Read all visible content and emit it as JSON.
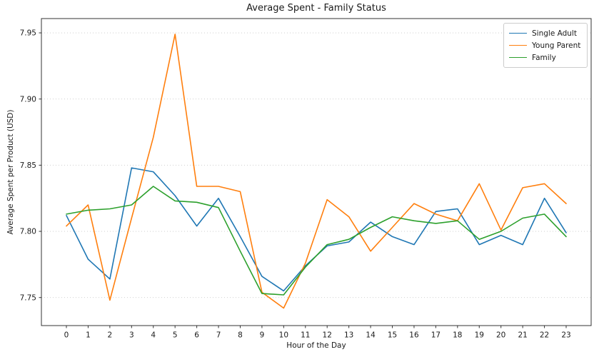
{
  "chart_data": {
    "type": "line",
    "title": "Average Spent - Family Status",
    "xlabel": "Hour of the Day",
    "ylabel": "Average Spent per Product (USD)",
    "x": [
      0,
      1,
      2,
      3,
      4,
      5,
      6,
      7,
      8,
      9,
      10,
      11,
      12,
      13,
      14,
      15,
      16,
      17,
      18,
      19,
      20,
      21,
      22,
      23
    ],
    "xtick_labels": [
      "0",
      "1",
      "2",
      "3",
      "4",
      "5",
      "6",
      "7",
      "8",
      "9",
      "10",
      "11",
      "12",
      "13",
      "14",
      "15",
      "16",
      "17",
      "18",
      "19",
      "20",
      "21",
      "22",
      "23"
    ],
    "yticks": [
      7.75,
      7.8,
      7.85,
      7.9,
      7.95
    ],
    "ytick_labels": [
      "7.75",
      "7.80",
      "7.85",
      "7.90",
      "7.95"
    ],
    "xlim": [
      -1.15,
      24.15
    ],
    "ylim": [
      7.7288,
      7.9608
    ],
    "grid": "horizontal-dotted",
    "legend_position": "upper right",
    "series": [
      {
        "name": "Single Adult",
        "color": "#1f77b4",
        "values": [
          7.812,
          7.779,
          7.764,
          7.848,
          7.845,
          7.827,
          7.804,
          7.825,
          7.796,
          7.766,
          7.755,
          7.774,
          7.789,
          7.792,
          7.807,
          7.796,
          7.79,
          7.815,
          7.817,
          7.79,
          7.797,
          7.79,
          7.825,
          7.799
        ]
      },
      {
        "name": "Young Parent",
        "color": "#ff7f0e",
        "values": [
          7.804,
          7.82,
          7.748,
          7.81,
          7.871,
          7.949,
          7.834,
          7.834,
          7.83,
          7.754,
          7.742,
          7.776,
          7.824,
          7.811,
          7.785,
          7.803,
          7.821,
          7.813,
          7.808,
          7.836,
          7.801,
          7.833,
          7.836,
          7.821
        ]
      },
      {
        "name": "Family",
        "color": "#2ca02c",
        "values": [
          7.813,
          7.816,
          7.817,
          7.82,
          7.834,
          7.823,
          7.822,
          7.818,
          7.785,
          7.753,
          7.752,
          7.773,
          7.79,
          7.794,
          7.803,
          7.811,
          7.808,
          7.806,
          7.808,
          7.794,
          7.8,
          7.81,
          7.813,
          7.796
        ]
      }
    ]
  }
}
